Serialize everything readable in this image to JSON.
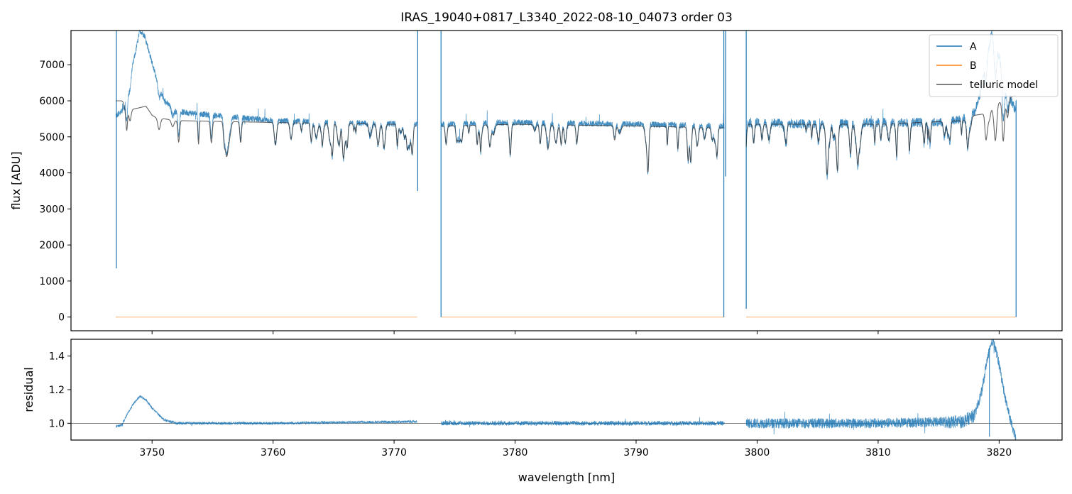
{
  "chart_data": [
    {
      "type": "line",
      "title": "IRAS_19040+0817_L3340_2022-08-10_04073  order 03",
      "xlabel": "",
      "ylabel": "flux [ADU]",
      "xlim": [
        3743.3,
        3825.2
      ],
      "ylim": [
        -380,
        7950
      ],
      "y_ticks": [
        0,
        1000,
        2000,
        3000,
        4000,
        5000,
        6000,
        7000
      ],
      "x_ticks": [
        3750,
        3760,
        3770,
        3780,
        3790,
        3800,
        3810,
        3820
      ],
      "legend_position": "top-right",
      "legend": [
        "A",
        "B",
        "telluric model"
      ],
      "colors": {
        "A": "#1f77b4",
        "B": "#ff7f0e",
        "telluric model": "#555555"
      },
      "segments": [
        [
          3747.0,
          3771.9
        ],
        [
          3773.9,
          3797.3
        ],
        [
          3799.1,
          3821.4
        ]
      ],
      "series": [
        {
          "name": "A",
          "description": "noisy spectrum, continuum ~5400 ADU with absorption dips",
          "x": [
            3747.0,
            3747.5,
            3748.0,
            3748.6,
            3749.0,
            3749.4,
            3749.8,
            3750.3,
            3751.0,
            3752.0,
            3755.0,
            3760.0,
            3765.0,
            3771.9,
            3773.9,
            3780.0,
            3790.0,
            3797.3,
            3799.1,
            3805.0,
            3810.0,
            3815.0,
            3817.0,
            3818.0,
            3818.6,
            3819.0,
            3819.4,
            3819.8,
            3820.3,
            3821.0,
            3821.4
          ],
          "y": [
            5600,
            5700,
            6400,
            7300,
            7950,
            7800,
            7300,
            6700,
            6000,
            5700,
            5600,
            5450,
            5400,
            5350,
            5350,
            5400,
            5350,
            5300,
            5400,
            5350,
            5400,
            5400,
            5500,
            5700,
            6400,
            7600,
            7950,
            7600,
            6700,
            6000,
            5700
          ]
        },
        {
          "name": "B",
          "x": [
            3747.0,
            3771.9,
            3773.9,
            3797.3,
            3799.1,
            3821.4
          ],
          "y": [
            0,
            0,
            0,
            0,
            0,
            0
          ]
        },
        {
          "name": "telluric model",
          "x": [
            3747.0,
            3747.6,
            3748.0,
            3748.2,
            3749.5,
            3750.0,
            3750.5,
            3751.0,
            3752.0,
            3760.0,
            3770.0,
            3771.9,
            3773.9,
            3780.0,
            3790.0,
            3797.3,
            3799.1,
            3810.0,
            3817.0,
            3818.0,
            3819.0,
            3820.0,
            3821.0,
            3821.4
          ],
          "y": [
            6000,
            6000,
            5950,
            5750,
            5850,
            5600,
            5500,
            5500,
            5450,
            5400,
            5350,
            5300,
            5300,
            5350,
            5300,
            5250,
            5350,
            5350,
            5450,
            5600,
            5650,
            5950,
            6100,
            6150
          ]
        }
      ]
    },
    {
      "type": "line",
      "title": "",
      "xlabel": "wavelength [nm]",
      "ylabel": "residual",
      "xlim": [
        3743.3,
        3825.2
      ],
      "ylim": [
        0.9,
        1.5
      ],
      "y_ticks": [
        1.0,
        1.2,
        1.4
      ],
      "x_ticks": [
        3750,
        3760,
        3770,
        3780,
        3790,
        3800,
        3810,
        3820
      ],
      "reference_line": 1.0,
      "series": [
        {
          "name": "residual",
          "x": [
            3747.0,
            3747.5,
            3748.0,
            3748.5,
            3749.0,
            3749.5,
            3750.0,
            3751.0,
            3752.0,
            3760.0,
            3771.9,
            3773.9,
            3797.3,
            3799.1,
            3810.0,
            3817.0,
            3818.0,
            3818.6,
            3819.0,
            3819.5,
            3820.0,
            3820.5,
            3821.0,
            3821.4
          ],
          "y": [
            0.98,
            0.99,
            1.06,
            1.12,
            1.16,
            1.14,
            1.09,
            1.02,
            1.0,
            1.0,
            1.01,
            1.0,
            1.0,
            1.0,
            1.0,
            1.01,
            1.05,
            1.2,
            1.38,
            1.5,
            1.35,
            1.15,
            1.0,
            0.9
          ]
        }
      ]
    }
  ]
}
